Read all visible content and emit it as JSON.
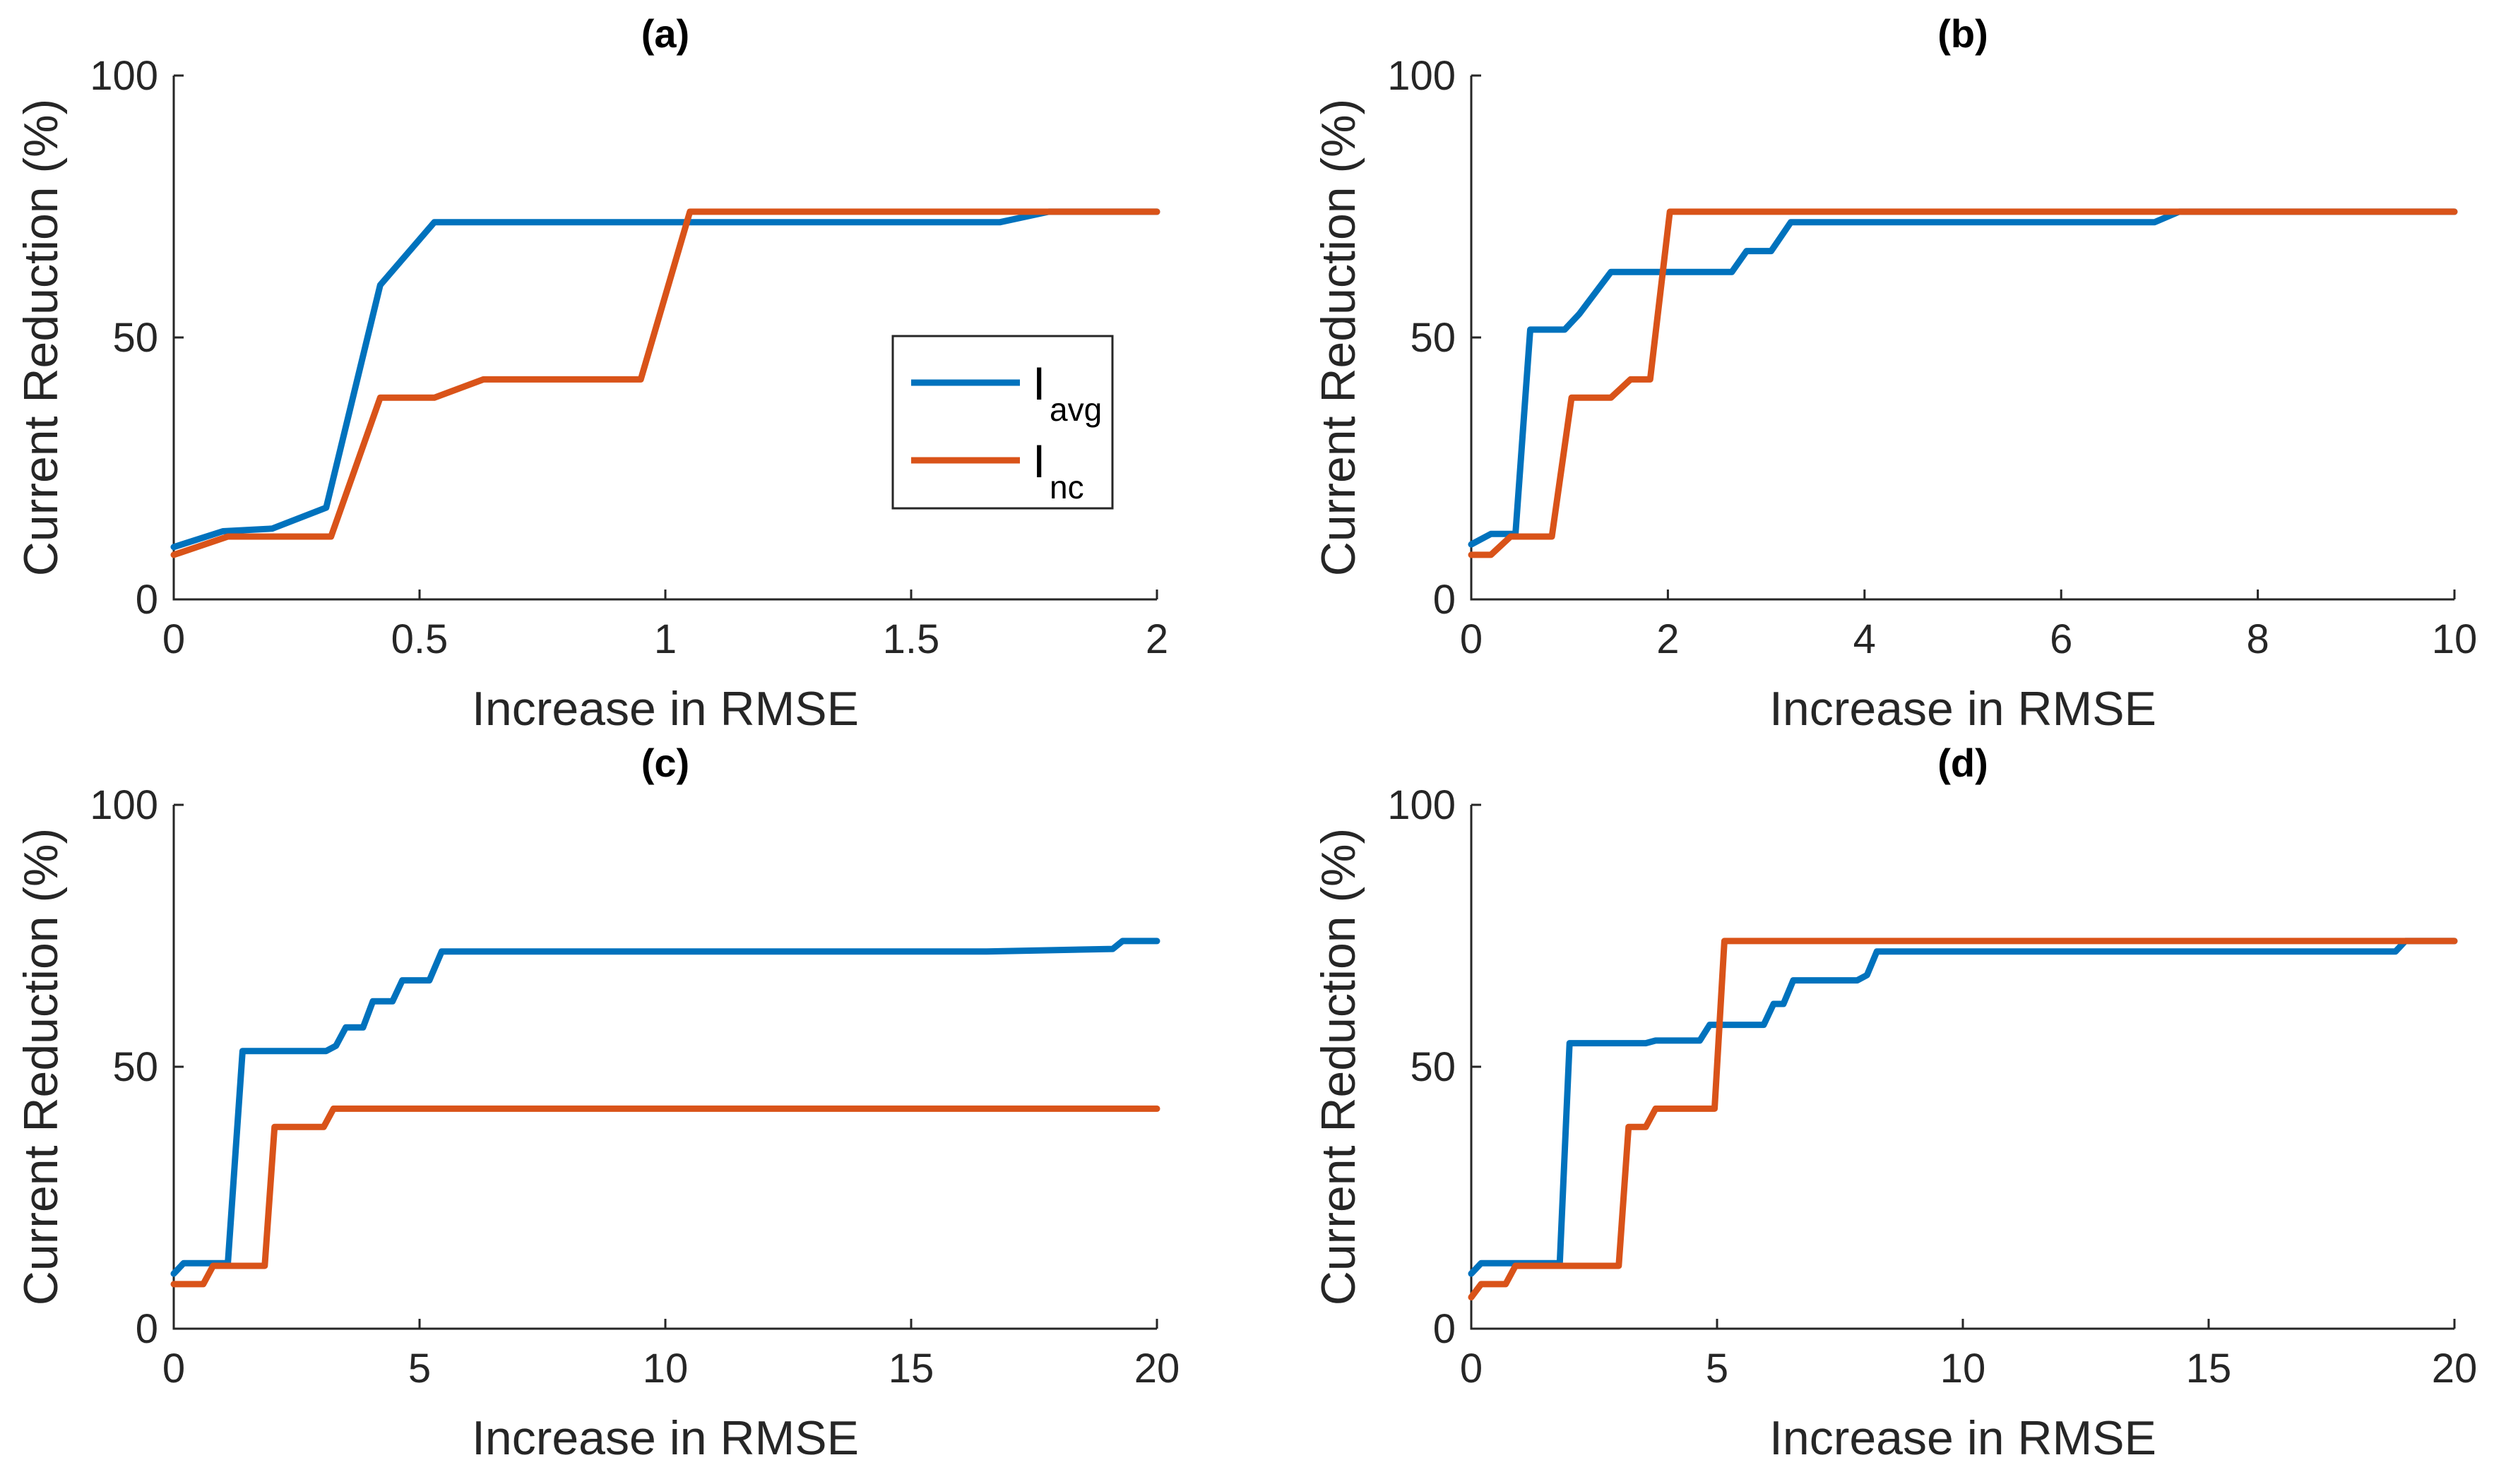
{
  "colors": {
    "I_avg": "#0072BD",
    "I_nc": "#D95319",
    "axis": "#262626"
  },
  "legend": {
    "panel": "a",
    "placement": "center-right",
    "entries": [
      {
        "series": "I_avg",
        "main": "I",
        "sub": "avg"
      },
      {
        "series": "I_nc",
        "main": "I",
        "sub": "nc"
      }
    ]
  },
  "chart_data": [
    {
      "id": "a",
      "type": "line",
      "title": "(a)",
      "xlabel": "Increase in RMSE",
      "ylabel": "Current Reduction (%)",
      "xlim": [
        0,
        2
      ],
      "ylim": [
        0,
        100
      ],
      "xticks": [
        0,
        0.5,
        1,
        1.5,
        2
      ],
      "xtick_labels": [
        "0",
        "0.5",
        "1",
        "1.5",
        "2"
      ],
      "yticks": [
        0,
        50,
        100
      ],
      "ytick_labels": [
        "0",
        "50",
        "100"
      ],
      "series": [
        {
          "name": "I_avg",
          "points": [
            [
              0,
              10
            ],
            [
              0.1,
              13
            ],
            [
              0.2,
              13.5
            ],
            [
              0.31,
              17.5
            ],
            [
              0.42,
              60
            ],
            [
              0.53,
              72
            ],
            [
              1.68,
              72
            ],
            [
              1.78,
              74
            ],
            [
              2,
              74
            ]
          ]
        },
        {
          "name": "I_nc",
          "points": [
            [
              0,
              8.5
            ],
            [
              0.11,
              12
            ],
            [
              0.32,
              12
            ],
            [
              0.42,
              38.5
            ],
            [
              0.53,
              38.5
            ],
            [
              0.63,
              42
            ],
            [
              0.95,
              42
            ],
            [
              1.05,
              74
            ],
            [
              2,
              74
            ]
          ]
        }
      ]
    },
    {
      "id": "b",
      "type": "line",
      "title": "(b)",
      "xlabel": "Increase in RMSE",
      "ylabel": "Current Reduction (%)",
      "xlim": [
        0,
        10
      ],
      "ylim": [
        0,
        100
      ],
      "xticks": [
        0,
        2,
        4,
        6,
        8,
        10
      ],
      "xtick_labels": [
        "0",
        "2",
        "4",
        "6",
        "8",
        "10"
      ],
      "yticks": [
        0,
        50,
        100
      ],
      "ytick_labels": [
        "0",
        "50",
        "100"
      ],
      "series": [
        {
          "name": "I_avg",
          "points": [
            [
              0,
              10.5
            ],
            [
              0.2,
              12.5
            ],
            [
              0.45,
              12.5
            ],
            [
              0.6,
              51.5
            ],
            [
              0.95,
              51.5
            ],
            [
              1.1,
              54.5
            ],
            [
              1.2,
              57
            ],
            [
              1.42,
              62.5
            ],
            [
              2.65,
              62.5
            ],
            [
              2.8,
              66.5
            ],
            [
              3.05,
              66.5
            ],
            [
              3.25,
              72
            ],
            [
              5.8,
              72
            ],
            [
              6.95,
              72
            ],
            [
              7.2,
              74
            ],
            [
              10,
              74
            ]
          ]
        },
        {
          "name": "I_nc",
          "points": [
            [
              0,
              8.5
            ],
            [
              0.2,
              8.5
            ],
            [
              0.4,
              12
            ],
            [
              0.82,
              12
            ],
            [
              1.02,
              38.5
            ],
            [
              1.42,
              38.5
            ],
            [
              1.62,
              42
            ],
            [
              1.82,
              42
            ],
            [
              2.02,
              74
            ],
            [
              10,
              74
            ]
          ]
        }
      ]
    },
    {
      "id": "c",
      "type": "line",
      "title": "(c)",
      "xlabel": "Increase in RMSE",
      "ylabel": "Current Reduction (%)",
      "xlim": [
        0,
        20
      ],
      "ylim": [
        0,
        100
      ],
      "xticks": [
        0,
        5,
        10,
        15,
        20
      ],
      "xtick_labels": [
        "0",
        "5",
        "10",
        "15",
        "20"
      ],
      "yticks": [
        0,
        50,
        100
      ],
      "ytick_labels": [
        "0",
        "50",
        "100"
      ],
      "series": [
        {
          "name": "I_avg",
          "points": [
            [
              0,
              10.5
            ],
            [
              0.2,
              12.5
            ],
            [
              1.1,
              12.5
            ],
            [
              1.4,
              53
            ],
            [
              3.1,
              53
            ],
            [
              3.3,
              54
            ],
            [
              3.5,
              57.5
            ],
            [
              3.85,
              57.5
            ],
            [
              4.05,
              62.5
            ],
            [
              4.45,
              62.5
            ],
            [
              4.65,
              66.5
            ],
            [
              5.2,
              66.5
            ],
            [
              5.45,
              72
            ],
            [
              16.5,
              72
            ],
            [
              19.1,
              72.5
            ],
            [
              19.3,
              74
            ],
            [
              20,
              74
            ]
          ]
        },
        {
          "name": "I_nc",
          "points": [
            [
              0,
              8.5
            ],
            [
              0.6,
              8.5
            ],
            [
              0.8,
              12
            ],
            [
              1.85,
              12
            ],
            [
              2.05,
              38.5
            ],
            [
              3.05,
              38.5
            ],
            [
              3.25,
              42
            ],
            [
              20,
              42
            ]
          ]
        }
      ]
    },
    {
      "id": "d",
      "type": "line",
      "title": "(d)",
      "xlabel": "Increase in RMSE",
      "ylabel": "Current Reduction (%)",
      "xlim": [
        0,
        20
      ],
      "ylim": [
        0,
        100
      ],
      "xticks": [
        0,
        5,
        10,
        15,
        20
      ],
      "xtick_labels": [
        "0",
        "5",
        "10",
        "15",
        "20"
      ],
      "yticks": [
        0,
        50,
        100
      ],
      "ytick_labels": [
        "0",
        "50",
        "100"
      ],
      "series": [
        {
          "name": "I_avg",
          "points": [
            [
              0,
              10.5
            ],
            [
              0.2,
              12.5
            ],
            [
              1.8,
              12.5
            ],
            [
              2.0,
              54.5
            ],
            [
              3.55,
              54.5
            ],
            [
              3.75,
              55
            ],
            [
              4.65,
              55
            ],
            [
              4.85,
              58
            ],
            [
              5.95,
              58
            ],
            [
              6.15,
              62
            ],
            [
              6.35,
              62
            ],
            [
              6.55,
              66.5
            ],
            [
              7.85,
              66.5
            ],
            [
              8.05,
              67.5
            ],
            [
              8.25,
              72
            ],
            [
              18.8,
              72
            ],
            [
              19.0,
              74
            ],
            [
              20,
              74
            ]
          ]
        },
        {
          "name": "I_nc",
          "points": [
            [
              0,
              6
            ],
            [
              0.2,
              8.5
            ],
            [
              0.7,
              8.5
            ],
            [
              0.9,
              12
            ],
            [
              3.0,
              12
            ],
            [
              3.2,
              38.5
            ],
            [
              3.55,
              38.5
            ],
            [
              3.75,
              42
            ],
            [
              4.95,
              42
            ],
            [
              5.15,
              74
            ],
            [
              20,
              74
            ]
          ]
        }
      ]
    }
  ]
}
